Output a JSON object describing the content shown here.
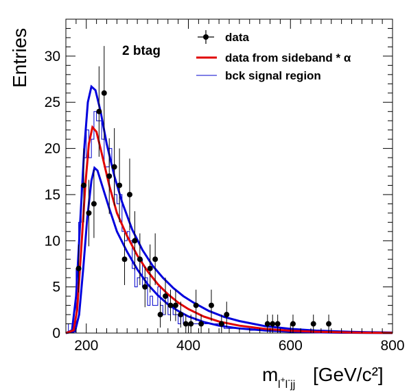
{
  "chart_data": {
    "type": "line",
    "xlabel": "[GeV/c²]",
    "xlabel_symbol": {
      "base": "m",
      "sub_main": "l",
      "sup1": "+",
      "mid": "l",
      "sup2": "-",
      "tail": "jj"
    },
    "ylabel": "Entries",
    "annotation": "2 btag",
    "xlim": [
      160,
      800
    ],
    "ylim": [
      0,
      34
    ],
    "xticks": [
      200,
      400,
      600,
      800
    ],
    "yticks": [
      0,
      5,
      10,
      15,
      20,
      25,
      30
    ],
    "grid": false,
    "legend_position": "top-right",
    "legend": [
      {
        "label": "data",
        "style": "marker",
        "color": "#000000"
      },
      {
        "label": "data from sideband * α",
        "style": "line",
        "color": "#e00000"
      },
      {
        "label": "bck signal region",
        "style": "thin-line",
        "color": "#0000cc"
      }
    ],
    "data_points": [
      {
        "x": 185,
        "y": 7,
        "err": 2.6
      },
      {
        "x": 195,
        "y": 16,
        "err": 4.0
      },
      {
        "x": 205,
        "y": 13,
        "err": 3.6
      },
      {
        "x": 215,
        "y": 14,
        "err": 3.7
      },
      {
        "x": 225,
        "y": 24,
        "err": 4.9
      },
      {
        "x": 235,
        "y": 26,
        "err": 5.1
      },
      {
        "x": 245,
        "y": 17,
        "err": 4.1
      },
      {
        "x": 255,
        "y": 18,
        "err": 4.2
      },
      {
        "x": 265,
        "y": 16,
        "err": 4.0
      },
      {
        "x": 275,
        "y": 8,
        "err": 2.8
      },
      {
        "x": 285,
        "y": 15,
        "err": 3.9
      },
      {
        "x": 295,
        "y": 10,
        "err": 3.2
      },
      {
        "x": 305,
        "y": 8,
        "err": 2.8
      },
      {
        "x": 315,
        "y": 5,
        "err": 2.2
      },
      {
        "x": 325,
        "y": 7,
        "err": 2.6
      },
      {
        "x": 335,
        "y": 8,
        "err": 2.8
      },
      {
        "x": 345,
        "y": 2,
        "err": 1.4
      },
      {
        "x": 355,
        "y": 4,
        "err": 2.0
      },
      {
        "x": 365,
        "y": 3,
        "err": 1.7
      },
      {
        "x": 375,
        "y": 3,
        "err": 1.7
      },
      {
        "x": 385,
        "y": 2,
        "err": 1.4
      },
      {
        "x": 395,
        "y": 1,
        "err": 1.0
      },
      {
        "x": 405,
        "y": 1,
        "err": 1.0
      },
      {
        "x": 415,
        "y": 3,
        "err": 1.7
      },
      {
        "x": 425,
        "y": 1,
        "err": 1.0
      },
      {
        "x": 445,
        "y": 3,
        "err": 1.7
      },
      {
        "x": 465,
        "y": 1,
        "err": 1.0
      },
      {
        "x": 475,
        "y": 2,
        "err": 1.4
      },
      {
        "x": 555,
        "y": 1,
        "err": 1.0
      },
      {
        "x": 565,
        "y": 1,
        "err": 1.0
      },
      {
        "x": 575,
        "y": 1,
        "err": 1.0
      },
      {
        "x": 605,
        "y": 1,
        "err": 1.0
      },
      {
        "x": 645,
        "y": 1,
        "err": 1.0
      },
      {
        "x": 675,
        "y": 1,
        "err": 1.0
      }
    ],
    "sideband_curve": {
      "color": "#e00000",
      "x": [
        160,
        175,
        182,
        190,
        198,
        205,
        212,
        220,
        230,
        245,
        260,
        280,
        300,
        320,
        340,
        360,
        380,
        400,
        430,
        460,
        500,
        550,
        600,
        650,
        700,
        750,
        800
      ],
      "y": [
        0,
        0.3,
        2.5,
        9,
        16,
        20.5,
        22.3,
        21.8,
        19.5,
        16,
        13,
        10.5,
        8.4,
        6.7,
        5.3,
        4.2,
        3.3,
        2.6,
        1.8,
        1.25,
        0.8,
        0.45,
        0.25,
        0.14,
        0.08,
        0.04,
        0.02
      ]
    },
    "sideband_band_upper": {
      "color": "#0000dd",
      "x": [
        160,
        172,
        180,
        188,
        196,
        203,
        210,
        218,
        228,
        240,
        255,
        270,
        290,
        310,
        330,
        350,
        370,
        390,
        410,
        440,
        470,
        500,
        550,
        600,
        650,
        700,
        750,
        800
      ],
      "y": [
        0,
        0.3,
        4,
        12,
        20,
        25,
        26.7,
        26.3,
        24,
        20.5,
        17,
        14.2,
        11.2,
        9,
        7.3,
        6,
        4.9,
        4,
        3.3,
        2.4,
        1.75,
        1.3,
        0.75,
        0.45,
        0.27,
        0.16,
        0.09,
        0.05
      ]
    },
    "sideband_band_lower": {
      "color": "#0000dd",
      "x": [
        160,
        178,
        186,
        194,
        202,
        210,
        216,
        222,
        232,
        245,
        260,
        280,
        300,
        320,
        340,
        360,
        380,
        400,
        430,
        460,
        500,
        550,
        600,
        650,
        700,
        750,
        800
      ],
      "y": [
        0,
        0.2,
        2,
        7,
        12.5,
        16.5,
        17.9,
        17.6,
        15.8,
        13.5,
        11,
        8.8,
        6.9,
        5.3,
        4.1,
        3.1,
        2.4,
        1.8,
        1.2,
        0.8,
        0.5,
        0.28,
        0.15,
        0.08,
        0.04,
        0.02,
        0.01
      ]
    },
    "bck_signal_hist": {
      "color": "#0000cc",
      "bin_width": 5,
      "bin_low_edges": [
        165,
        170,
        175,
        180,
        185,
        190,
        195,
        200,
        205,
        210,
        215,
        220,
        225,
        230,
        235,
        240,
        245,
        250,
        255,
        260,
        265,
        270,
        275,
        280,
        285,
        290,
        295,
        300,
        305,
        310,
        315,
        320,
        325,
        330,
        335,
        340,
        345,
        350,
        355,
        360,
        365,
        370,
        375,
        380,
        385,
        390,
        395,
        400,
        405,
        410,
        415,
        420,
        430,
        440,
        450,
        460,
        470,
        480,
        500,
        520,
        560,
        600,
        650,
        700,
        750
      ],
      "values": [
        1,
        1,
        0,
        7,
        12,
        16,
        19,
        22,
        19,
        21,
        24,
        23,
        23,
        21,
        18,
        18,
        20,
        18,
        15,
        14,
        15,
        11,
        10,
        11,
        10,
        7,
        5,
        6,
        8,
        5,
        6,
        3,
        4,
        3,
        3,
        5,
        3,
        2,
        4,
        2,
        3,
        2,
        2,
        1,
        2,
        1,
        1,
        1,
        1,
        1,
        1,
        1,
        1,
        1,
        1,
        1,
        0.5,
        0.5,
        0.5,
        0.3,
        0.3,
        0.2,
        0.2,
        0.1,
        0.1
      ]
    }
  }
}
